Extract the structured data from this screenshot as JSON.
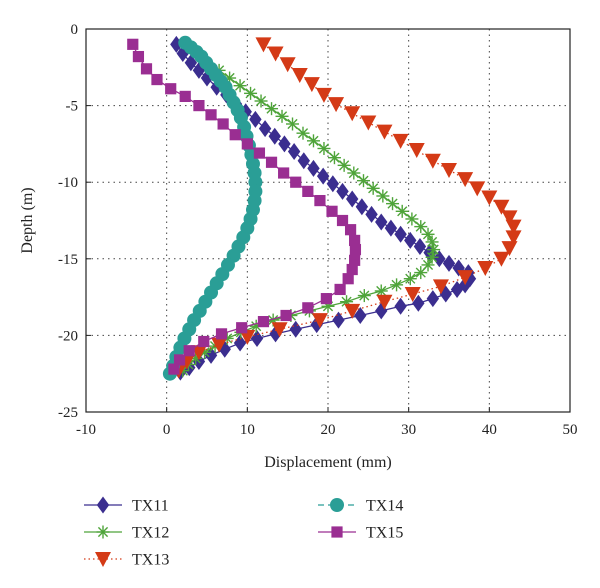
{
  "chart_data": {
    "type": "scatter",
    "xlabel": "Displacement (mm)",
    "ylabel": "Depth (m)",
    "xlim": [
      -10,
      50
    ],
    "ylim": [
      -25,
      0
    ],
    "x_ticks": [
      -10,
      0,
      10,
      20,
      30,
      40,
      50
    ],
    "y_ticks": [
      0,
      -5,
      -10,
      -15,
      -20,
      -25
    ],
    "grid": "dotted",
    "legend_position": "bottom",
    "series": [
      {
        "name": "TX11",
        "color": "#3b2e8f",
        "marker": "diamond",
        "line": "solid",
        "points": [
          [
            1.2,
            -1.0
          ],
          [
            2.0,
            -1.6
          ],
          [
            3.0,
            -2.2
          ],
          [
            4.0,
            -2.7
          ],
          [
            5.0,
            -3.2
          ],
          [
            6.2,
            -3.8
          ],
          [
            7.4,
            -4.3
          ],
          [
            8.6,
            -4.9
          ],
          [
            9.8,
            -5.4
          ],
          [
            11.0,
            -5.9
          ],
          [
            12.2,
            -6.5
          ],
          [
            13.4,
            -7.0
          ],
          [
            14.6,
            -7.5
          ],
          [
            15.8,
            -8.0
          ],
          [
            17.0,
            -8.6
          ],
          [
            18.2,
            -9.1
          ],
          [
            19.4,
            -9.6
          ],
          [
            20.6,
            -10.1
          ],
          [
            21.8,
            -10.6
          ],
          [
            23.0,
            -11.1
          ],
          [
            24.2,
            -11.6
          ],
          [
            25.4,
            -12.1
          ],
          [
            26.6,
            -12.6
          ],
          [
            27.8,
            -13.0
          ],
          [
            29.0,
            -13.4
          ],
          [
            30.2,
            -13.8
          ],
          [
            31.4,
            -14.2
          ],
          [
            32.6,
            -14.6
          ],
          [
            33.8,
            -15.0
          ],
          [
            35.0,
            -15.3
          ],
          [
            36.2,
            -15.6
          ],
          [
            37.4,
            -15.9
          ],
          [
            37.6,
            -16.3
          ],
          [
            37.0,
            -16.7
          ],
          [
            36.0,
            -17.0
          ],
          [
            34.6,
            -17.3
          ],
          [
            33.0,
            -17.6
          ],
          [
            31.2,
            -17.9
          ],
          [
            29.0,
            -18.1
          ],
          [
            26.6,
            -18.4
          ],
          [
            24.0,
            -18.7
          ],
          [
            21.3,
            -19.0
          ],
          [
            18.6,
            -19.3
          ],
          [
            16.0,
            -19.6
          ],
          [
            13.5,
            -19.9
          ],
          [
            11.2,
            -20.2
          ],
          [
            9.1,
            -20.5
          ],
          [
            7.2,
            -20.9
          ],
          [
            5.5,
            -21.3
          ],
          [
            4.0,
            -21.7
          ],
          [
            2.8,
            -22.1
          ],
          [
            1.7,
            -22.4
          ]
        ]
      },
      {
        "name": "TX12",
        "color": "#4fa43a",
        "marker": "asterisk",
        "line": "solid",
        "points": [
          [
            6.5,
            -2.7
          ],
          [
            7.8,
            -3.2
          ],
          [
            9.1,
            -3.7
          ],
          [
            10.4,
            -4.2
          ],
          [
            11.7,
            -4.7
          ],
          [
            13.0,
            -5.2
          ],
          [
            14.3,
            -5.7
          ],
          [
            15.6,
            -6.2
          ],
          [
            16.9,
            -6.8
          ],
          [
            18.2,
            -7.3
          ],
          [
            19.5,
            -7.8
          ],
          [
            20.8,
            -8.4
          ],
          [
            22.0,
            -8.9
          ],
          [
            23.2,
            -9.4
          ],
          [
            24.4,
            -9.9
          ],
          [
            25.6,
            -10.4
          ],
          [
            26.8,
            -10.9
          ],
          [
            28.0,
            -11.4
          ],
          [
            29.2,
            -11.9
          ],
          [
            30.4,
            -12.4
          ],
          [
            31.5,
            -12.9
          ],
          [
            32.4,
            -13.4
          ],
          [
            32.9,
            -13.9
          ],
          [
            33.1,
            -14.4
          ],
          [
            32.9,
            -14.9
          ],
          [
            32.4,
            -15.4
          ],
          [
            31.5,
            -15.9
          ],
          [
            30.2,
            -16.3
          ],
          [
            28.5,
            -16.7
          ],
          [
            26.6,
            -17.1
          ],
          [
            24.5,
            -17.4
          ],
          [
            22.3,
            -17.8
          ],
          [
            20.0,
            -18.1
          ],
          [
            17.7,
            -18.4
          ],
          [
            15.4,
            -18.7
          ],
          [
            13.2,
            -19.0
          ],
          [
            11.1,
            -19.4
          ],
          [
            9.2,
            -19.8
          ],
          [
            7.5,
            -20.2
          ],
          [
            6.0,
            -20.7
          ],
          [
            4.7,
            -21.1
          ],
          [
            3.6,
            -21.5
          ],
          [
            2.7,
            -21.9
          ],
          [
            2.0,
            -22.3
          ]
        ]
      },
      {
        "name": "TX13",
        "color": "#d43a16",
        "marker": "triangle-down",
        "line": "dotted",
        "points": [
          [
            12.0,
            -1.0
          ],
          [
            13.5,
            -1.6
          ],
          [
            15.0,
            -2.3
          ],
          [
            16.5,
            -3.0
          ],
          [
            18.0,
            -3.6
          ],
          [
            19.5,
            -4.3
          ],
          [
            21.0,
            -4.9
          ],
          [
            23.0,
            -5.5
          ],
          [
            25.0,
            -6.1
          ],
          [
            27.0,
            -6.7
          ],
          [
            29.0,
            -7.3
          ],
          [
            31.0,
            -7.9
          ],
          [
            33.0,
            -8.6
          ],
          [
            35.0,
            -9.2
          ],
          [
            37.0,
            -9.8
          ],
          [
            38.5,
            -10.4
          ],
          [
            40.0,
            -11.0
          ],
          [
            41.5,
            -11.6
          ],
          [
            42.5,
            -12.3
          ],
          [
            43.0,
            -12.9
          ],
          [
            43.0,
            -13.6
          ],
          [
            42.5,
            -14.3
          ],
          [
            41.5,
            -15.0
          ],
          [
            39.5,
            -15.6
          ],
          [
            37.0,
            -16.2
          ],
          [
            34.0,
            -16.8
          ],
          [
            30.5,
            -17.3
          ],
          [
            27.0,
            -17.8
          ],
          [
            23.0,
            -18.4
          ],
          [
            19.0,
            -19.0
          ],
          [
            14.0,
            -19.6
          ],
          [
            10.0,
            -20.1
          ],
          [
            6.5,
            -20.6
          ],
          [
            4.0,
            -21.1
          ],
          [
            2.5,
            -21.7
          ],
          [
            1.5,
            -22.3
          ]
        ]
      },
      {
        "name": "TX14",
        "color": "#2a9e96",
        "marker": "circle",
        "line": "dashed",
        "points": [
          [
            2.3,
            -0.9
          ],
          [
            3.0,
            -1.2
          ],
          [
            3.7,
            -1.5
          ],
          [
            4.3,
            -1.8
          ],
          [
            4.9,
            -2.2
          ],
          [
            5.5,
            -2.6
          ],
          [
            6.1,
            -3.0
          ],
          [
            6.7,
            -3.4
          ],
          [
            7.3,
            -3.8
          ],
          [
            7.8,
            -4.3
          ],
          [
            8.3,
            -4.8
          ],
          [
            8.8,
            -5.3
          ],
          [
            9.2,
            -5.8
          ],
          [
            9.6,
            -6.4
          ],
          [
            9.9,
            -7.0
          ],
          [
            10.2,
            -7.6
          ],
          [
            10.5,
            -8.2
          ],
          [
            10.7,
            -8.8
          ],
          [
            10.9,
            -9.4
          ],
          [
            11.0,
            -10.0
          ],
          [
            11.0,
            -10.6
          ],
          [
            10.9,
            -11.2
          ],
          [
            10.7,
            -11.8
          ],
          [
            10.4,
            -12.4
          ],
          [
            10.0,
            -13.0
          ],
          [
            9.5,
            -13.6
          ],
          [
            8.9,
            -14.2
          ],
          [
            8.3,
            -14.8
          ],
          [
            7.6,
            -15.4
          ],
          [
            6.9,
            -16.0
          ],
          [
            6.2,
            -16.6
          ],
          [
            5.5,
            -17.2
          ],
          [
            4.8,
            -17.8
          ],
          [
            4.1,
            -18.4
          ],
          [
            3.4,
            -19.0
          ],
          [
            2.8,
            -19.6
          ],
          [
            2.2,
            -20.2
          ],
          [
            1.7,
            -20.8
          ],
          [
            1.2,
            -21.4
          ],
          [
            0.8,
            -22.0
          ],
          [
            0.4,
            -22.5
          ]
        ]
      },
      {
        "name": "TX15",
        "color": "#9a2e92",
        "marker": "square",
        "line": "solid",
        "points": [
          [
            -4.2,
            -1.0
          ],
          [
            -3.5,
            -1.8
          ],
          [
            -2.5,
            -2.6
          ],
          [
            -1.2,
            -3.3
          ],
          [
            0.5,
            -3.9
          ],
          [
            2.3,
            -4.4
          ],
          [
            4.0,
            -5.0
          ],
          [
            5.5,
            -5.6
          ],
          [
            7.0,
            -6.2
          ],
          [
            8.5,
            -6.9
          ],
          [
            10.0,
            -7.5
          ],
          [
            11.5,
            -8.1
          ],
          [
            13.0,
            -8.7
          ],
          [
            14.5,
            -9.4
          ],
          [
            16.0,
            -10.0
          ],
          [
            17.5,
            -10.6
          ],
          [
            19.0,
            -11.2
          ],
          [
            20.5,
            -11.9
          ],
          [
            21.8,
            -12.5
          ],
          [
            22.8,
            -13.1
          ],
          [
            23.3,
            -13.8
          ],
          [
            23.4,
            -14.4
          ],
          [
            23.3,
            -15.1
          ],
          [
            23.0,
            -15.7
          ],
          [
            22.5,
            -16.3
          ],
          [
            21.5,
            -17.0
          ],
          [
            19.8,
            -17.6
          ],
          [
            17.5,
            -18.2
          ],
          [
            14.8,
            -18.7
          ],
          [
            12.0,
            -19.1
          ],
          [
            9.3,
            -19.5
          ],
          [
            6.8,
            -19.9
          ],
          [
            4.6,
            -20.4
          ],
          [
            2.8,
            -21.0
          ],
          [
            1.6,
            -21.6
          ],
          [
            0.9,
            -22.2
          ]
        ]
      }
    ]
  }
}
